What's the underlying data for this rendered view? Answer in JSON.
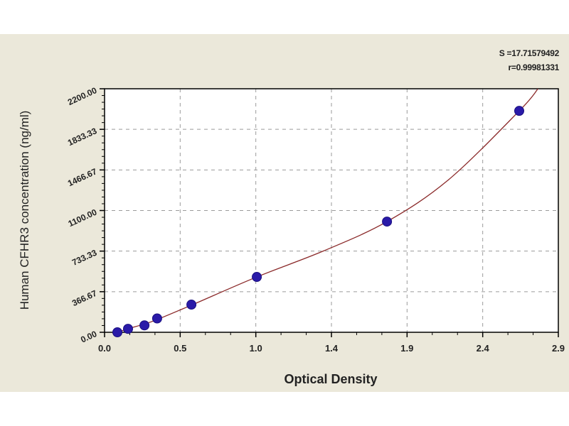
{
  "chart_data": {
    "type": "scatter",
    "title": "",
    "xlabel": "Optical Density",
    "ylabel": "Human CFHR3 concentration (ng/ml)",
    "xlim": [
      0,
      2.9
    ],
    "ylim": [
      0,
      2200
    ],
    "x_tick_values": [
      0,
      0.4833,
      0.9667,
      1.45,
      1.9333,
      2.4167,
      2.9
    ],
    "x_tick_labels": [
      "0.0",
      "0.5",
      "1.0",
      "1.4",
      "1.9",
      "2.4",
      "2.9"
    ],
    "y_tick_values": [
      0,
      366.67,
      733.33,
      1100,
      1466.67,
      1833.33,
      2200
    ],
    "y_tick_labels": [
      "0.00",
      "366.67",
      "733.33",
      "1100.00",
      "1466.67",
      "1833.33",
      "2200.00"
    ],
    "grid": true,
    "points": {
      "x": [
        0.082,
        0.15,
        0.255,
        0.336,
        0.555,
        0.973,
        1.805,
        2.65
      ],
      "y": [
        0,
        31.25,
        62.5,
        125,
        250,
        500,
        1000,
        2000
      ]
    },
    "fit_curve": {
      "x": [
        0.05,
        0.082,
        0.15,
        0.255,
        0.336,
        0.555,
        0.973,
        1.4,
        1.805,
        2.2,
        2.65,
        2.77
      ],
      "y": [
        -15,
        0,
        31.25,
        75,
        115,
        245,
        500,
        735,
        1000,
        1380,
        2000,
        2200
      ]
    },
    "annotations": [
      "S =17.71579492",
      "r=0.99981331"
    ],
    "colors": {
      "point": "#2a1aa8",
      "curve": "#8b2a2a",
      "grid": "#9a9a9a",
      "plot_bg": "#ffffff",
      "frame_bg": "#ebe8da"
    }
  }
}
